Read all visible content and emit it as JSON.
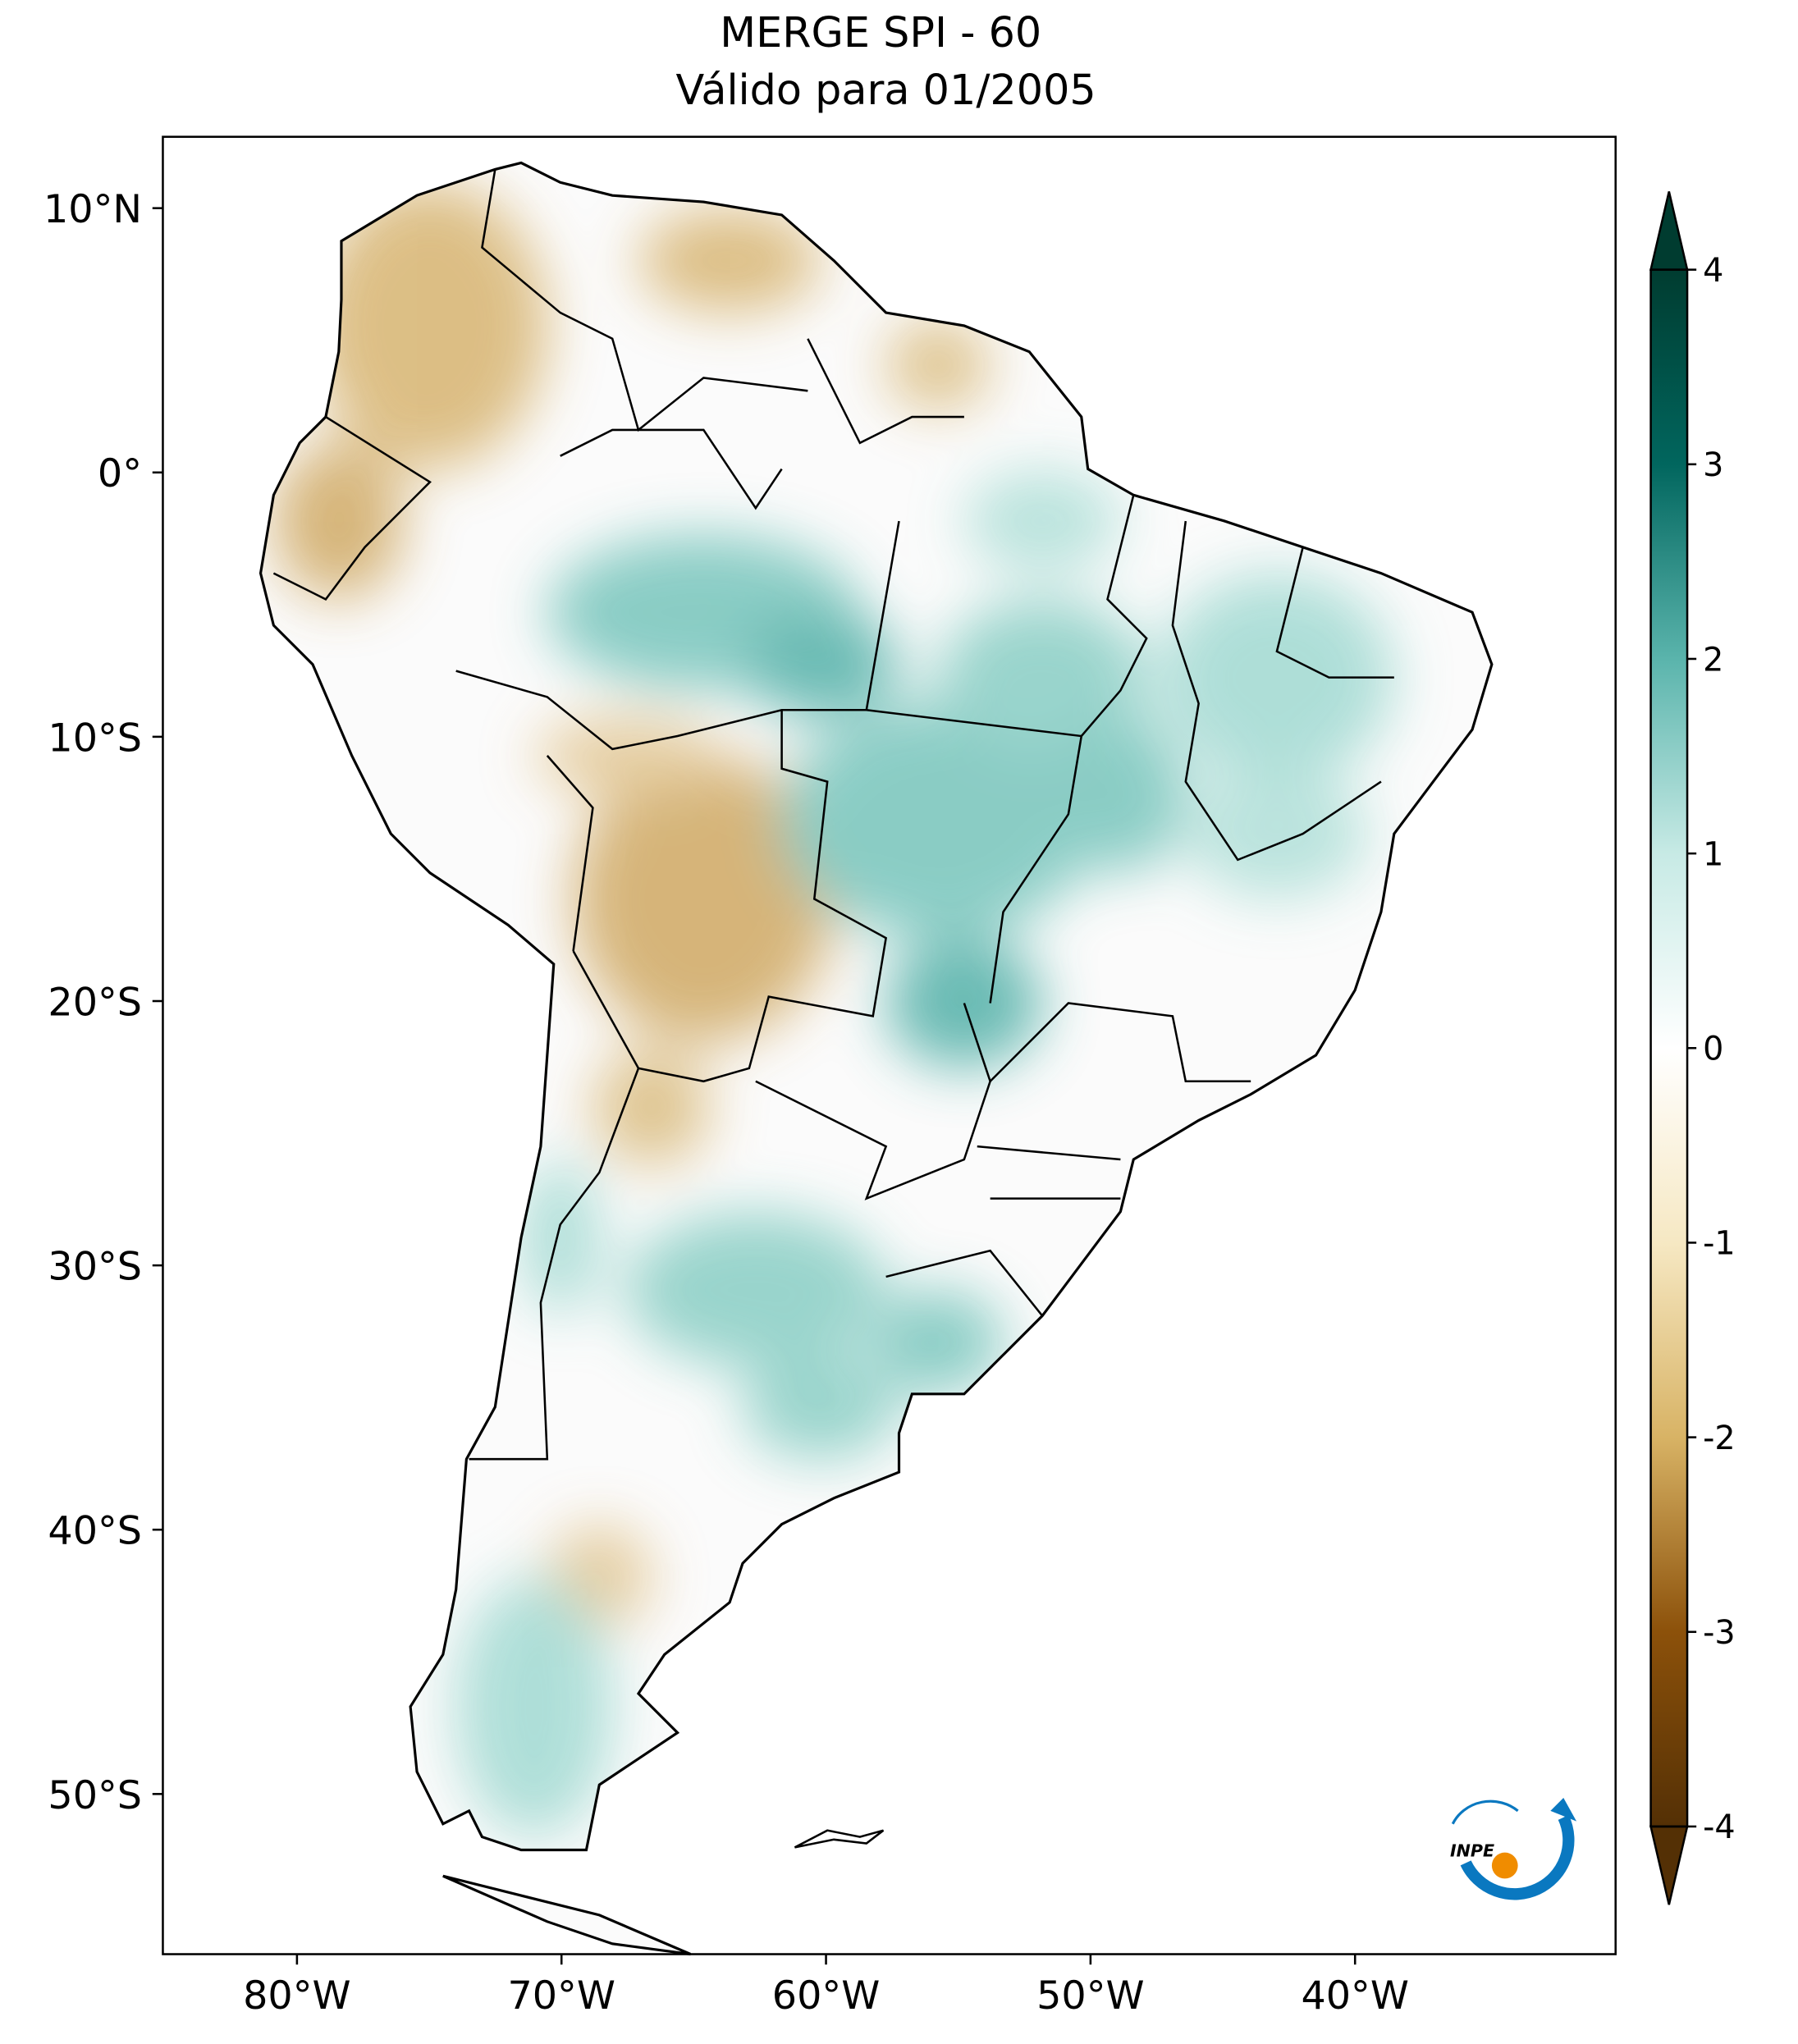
{
  "map": {
    "title": "MERGE   SPI - 60",
    "subtitle": "Válido para 01/2005",
    "xlim": [
      -85.07,
      -30.15
    ],
    "ylim": [
      -56.06,
      12.7
    ],
    "xticks": [
      {
        "value": -80,
        "label": "80°W"
      },
      {
        "value": -70,
        "label": "70°W"
      },
      {
        "value": -60,
        "label": "60°W"
      },
      {
        "value": -50,
        "label": "50°W"
      },
      {
        "value": -40,
        "label": "40°W"
      }
    ],
    "yticks": [
      {
        "value": 10,
        "label": "10°N"
      },
      {
        "value": 0,
        "label": "0°"
      },
      {
        "value": -10,
        "label": "10°S"
      },
      {
        "value": -20,
        "label": "20°S"
      },
      {
        "value": -30,
        "label": "30°S"
      },
      {
        "value": -40,
        "label": "40°S"
      },
      {
        "value": -50,
        "label": "50°S"
      }
    ],
    "colorbar": {
      "lim": [
        -4,
        4
      ],
      "ticks": [
        4,
        3,
        2,
        1,
        0,
        -1,
        -2,
        -3,
        -4
      ],
      "colors": [
        "#543005",
        "#8c510a",
        "#d8b365",
        "#f6e8c3",
        "#ffffff",
        "#c7eae5",
        "#5ab4ac",
        "#01665e",
        "#003c30"
      ]
    },
    "logo": "INPE"
  }
}
